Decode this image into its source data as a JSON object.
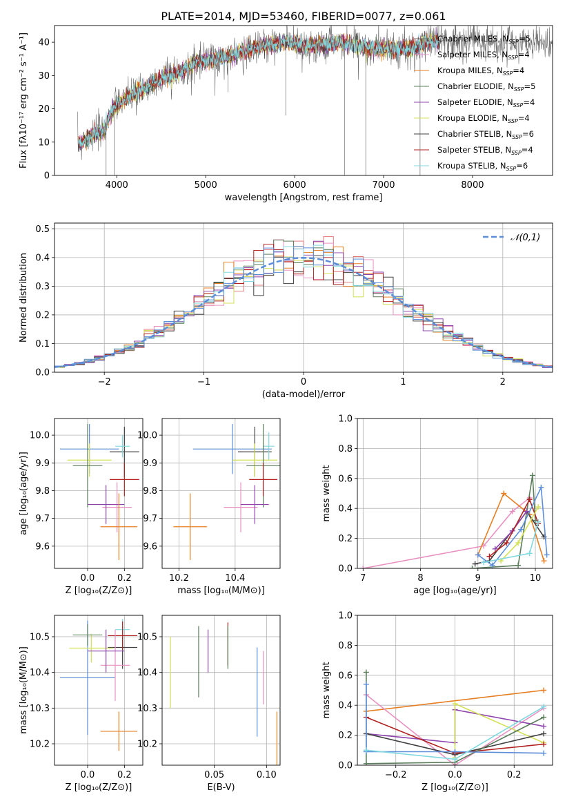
{
  "title": "PLATE=2014, MJD=53460, FIBERID=0077, z=0.061",
  "colors": [
    "#e07b7b",
    "#e891c1",
    "#e67e22",
    "#5a7d5a",
    "#8e44ad",
    "#d4e157",
    "#404040",
    "#b22222",
    "#80d8e0",
    "#5b8dd9"
  ],
  "chart_data": [
    {
      "type": "line",
      "name": "spectrum",
      "xlabel": "wavelength [Angstrom, rest frame]",
      "ylabel": "Flux [fλ10⁻¹⁷ erg cm⁻² s⁻¹ A⁻¹]",
      "xlim": [
        3300,
        8900
      ],
      "ylim": [
        0,
        45
      ],
      "xticks": [
        "4000",
        "5000",
        "6000",
        "7000",
        "8000"
      ],
      "yticks": [
        "0",
        "10",
        "20",
        "30",
        "40"
      ],
      "legend_position": "right",
      "series": [
        {
          "name": "Chabrier MILES, N_SSP=5",
          "label_main": "Chabrier MILES, N",
          "label_sub": "SSP",
          "label_tail": "=5",
          "color": "#6b6b6b"
        },
        {
          "name": "Salpeter MILES, N_SSP=4",
          "label_main": "Salpeter MILES, N",
          "label_sub": "SSP",
          "label_tail": "=4",
          "color": "#e891c1"
        },
        {
          "name": "Kroupa MILES, N_SSP=4",
          "label_main": "Kroupa MILES, N",
          "label_sub": "SSP",
          "label_tail": "=4",
          "color": "#e67e22"
        },
        {
          "name": "Chabrier ELODIE, N_SSP=5",
          "label_main": "Chabrier ELODIE, N",
          "label_sub": "SSP",
          "label_tail": "=5",
          "color": "#5a7d5a"
        },
        {
          "name": "Salpeter ELODIE, N_SSP=4",
          "label_main": "Salpeter ELODIE, N",
          "label_sub": "SSP",
          "label_tail": "=4",
          "color": "#8e44ad"
        },
        {
          "name": "Kroupa ELODIE, N_SSP=4",
          "label_main": "Kroupa ELODIE, N",
          "label_sub": "SSP",
          "label_tail": "=4",
          "color": "#d4e157"
        },
        {
          "name": "Chabrier STELIB, N_SSP=6",
          "label_main": "Chabrier STELIB, N",
          "label_sub": "SSP",
          "label_tail": "=6",
          "color": "#404040"
        },
        {
          "name": "Salpeter STELIB, N_SSP=4",
          "label_main": "Salpeter STELIB, N",
          "label_sub": "SSP",
          "label_tail": "=4",
          "color": "#b22222"
        },
        {
          "name": "Kroupa STELIB, N_SSP=6",
          "label_main": "Kroupa STELIB, N",
          "label_sub": "SSP",
          "label_tail": "=6",
          "color": "#80d8e0"
        }
      ],
      "continuum": [
        [
          3560,
          9
        ],
        [
          3700,
          12
        ],
        [
          3850,
          13
        ],
        [
          3950,
          20
        ],
        [
          4100,
          23
        ],
        [
          4300,
          26
        ],
        [
          4500,
          29
        ],
        [
          4700,
          31
        ],
        [
          4900,
          34
        ],
        [
          5100,
          35
        ],
        [
          5300,
          36
        ],
        [
          5500,
          38
        ],
        [
          5700,
          39
        ],
        [
          5900,
          40
        ],
        [
          6100,
          39
        ],
        [
          6300,
          39
        ],
        [
          6500,
          40
        ],
        [
          6700,
          39
        ],
        [
          6900,
          38
        ],
        [
          7100,
          38
        ],
        [
          7300,
          38
        ],
        [
          7500,
          40
        ],
        [
          7700,
          41
        ],
        [
          7900,
          40
        ],
        [
          8100,
          40
        ],
        [
          8300,
          40
        ],
        [
          8500,
          39
        ],
        [
          8700,
          40
        ],
        [
          8900,
          40
        ]
      ]
    },
    {
      "type": "step",
      "name": "residuals",
      "xlabel": "(data-model)/error",
      "ylabel": "Normed distribution",
      "xlim": [
        -2.5,
        2.5
      ],
      "ylim": [
        0,
        0.52
      ],
      "xticks": [
        "−2",
        "−1",
        "0",
        "1",
        "2"
      ],
      "yticks": [
        "0.0",
        "0.1",
        "0.2",
        "0.3",
        "0.4",
        "0.5"
      ],
      "legend": "𝒩(0,1)",
      "legend_position": "upper right",
      "reference_curve": "gaussian mean 0 sigma 1"
    },
    {
      "type": "errorbar",
      "name": "age-vs-Z",
      "xlabel": "Z [log₁₀(Z/Z⊙)]",
      "ylabel": "age  [log₁₀(age/yr)]",
      "xlim": [
        -0.18,
        0.3
      ],
      "ylim": [
        9.52,
        10.06
      ],
      "xticks": [
        "0.0",
        "0.2"
      ],
      "yticks": [
        "9.6",
        "9.7",
        "9.8",
        "9.9",
        "10.0"
      ],
      "points": [
        {
          "x": 0.01,
          "y": 9.95,
          "xerr": 0.16,
          "yerr": 0.09,
          "color": "#5b8dd9"
        },
        {
          "x": 0.2,
          "y": 9.94,
          "xerr": 0.08,
          "yerr": 0.09,
          "color": "#404040"
        },
        {
          "x": 0.19,
          "y": 9.96,
          "xerr": 0.04,
          "yerr": 0.04,
          "color": "#80d8e0"
        },
        {
          "x": 0.01,
          "y": 9.91,
          "xerr": 0.12,
          "yerr": 0.06,
          "color": "#d4e157"
        },
        {
          "x": 0.0,
          "y": 9.89,
          "xerr": 0.08,
          "yerr": 0.15,
          "color": "#5a7d5a"
        },
        {
          "x": 0.2,
          "y": 9.84,
          "xerr": 0.08,
          "yerr": 0.06,
          "color": "#b22222"
        },
        {
          "x": 0.16,
          "y": 9.74,
          "xerr": 0.08,
          "yerr": 0.09,
          "color": "#e891c1"
        },
        {
          "x": 0.1,
          "y": 9.75,
          "xerr": 0.1,
          "yerr": 0.07,
          "color": "#8e44ad"
        },
        {
          "x": 0.17,
          "y": 9.67,
          "xerr": 0.1,
          "yerr": 0.12,
          "color": "#e67e22"
        }
      ]
    },
    {
      "type": "errorbar",
      "name": "age-vs-mass",
      "xlabel": "mass [log₁₀(M/M⊙)]",
      "ylabel": "",
      "xlim": [
        10.14,
        10.56
      ],
      "ylim": [
        9.52,
        10.06
      ],
      "xticks": [
        "10.2",
        "10.4"
      ],
      "yticks": [
        "9.6",
        "9.7",
        "9.8",
        "9.9",
        "10.0"
      ],
      "points": [
        {
          "x": 10.39,
          "y": 9.95,
          "xerr": 0.14,
          "yerr": 0.09,
          "color": "#5b8dd9"
        },
        {
          "x": 10.47,
          "y": 9.94,
          "xerr": 0.06,
          "yerr": 0.09,
          "color": "#404040"
        },
        {
          "x": 10.52,
          "y": 9.96,
          "xerr": 0.02,
          "yerr": 0.05,
          "color": "#80d8e0"
        },
        {
          "x": 10.47,
          "y": 9.91,
          "xerr": 0.08,
          "yerr": 0.06,
          "color": "#d4e157"
        },
        {
          "x": 10.5,
          "y": 9.89,
          "xerr": 0.06,
          "yerr": 0.15,
          "color": "#5a7d5a"
        },
        {
          "x": 10.5,
          "y": 9.84,
          "xerr": 0.05,
          "yerr": 0.06,
          "color": "#b22222"
        },
        {
          "x": 10.42,
          "y": 9.74,
          "xerr": 0.06,
          "yerr": 0.09,
          "color": "#e891c1"
        },
        {
          "x": 10.47,
          "y": 9.75,
          "xerr": 0.05,
          "yerr": 0.07,
          "color": "#8e44ad"
        },
        {
          "x": 10.24,
          "y": 9.67,
          "xerr": 0.06,
          "yerr": 0.12,
          "color": "#e67e22"
        }
      ]
    },
    {
      "type": "line",
      "name": "weight-vs-age",
      "xlabel": "age  [log₁₀(age/yr)]",
      "ylabel": "mass weight",
      "xlim": [
        6.9,
        10.3
      ],
      "ylim": [
        0,
        1
      ],
      "xticks": [
        "7",
        "8",
        "9",
        "10"
      ],
      "yticks": [
        "0.0",
        "0.2",
        "0.4",
        "0.6",
        "0.8",
        "1.0"
      ],
      "series": [
        {
          "color": "#e891c1",
          "x": [
            7.0,
            9.1,
            9.6,
            9.9
          ],
          "y": [
            0.0,
            0.15,
            0.38,
            0.47
          ]
        },
        {
          "color": "#e67e22",
          "x": [
            9.0,
            9.45,
            9.9,
            10.15
          ],
          "y": [
            0.09,
            0.5,
            0.36,
            0.05
          ]
        },
        {
          "color": "#5a7d5a",
          "x": [
            8.9,
            9.7,
            9.95,
            10.0
          ],
          "y": [
            0.0,
            0.02,
            0.62,
            0.32
          ]
        },
        {
          "color": "#404040",
          "x": [
            8.95,
            9.2,
            9.85,
            10.15
          ],
          "y": [
            0.03,
            0.05,
            0.38,
            0.21
          ]
        },
        {
          "color": "#8e44ad",
          "x": [
            9.3,
            9.6,
            9.85
          ],
          "y": [
            0.13,
            0.25,
            0.38
          ]
        },
        {
          "color": "#b22222",
          "x": [
            9.2,
            9.5,
            9.9,
            10.05
          ],
          "y": [
            0.08,
            0.17,
            0.46,
            0.3
          ]
        },
        {
          "color": "#5b8dd9",
          "x": [
            9.0,
            9.25,
            9.75,
            10.1,
            10.2
          ],
          "y": [
            0.09,
            0.02,
            0.26,
            0.54,
            0.09
          ]
        },
        {
          "color": "#d4e157",
          "x": [
            9.4,
            9.7,
            10.05
          ],
          "y": [
            0.05,
            0.17,
            0.41
          ]
        },
        {
          "color": "#80d8e0",
          "x": [
            9.1,
            9.9,
            10.05
          ],
          "y": [
            0.04,
            0.1,
            0.31
          ]
        }
      ]
    },
    {
      "type": "errorbar",
      "name": "mass-vs-Z",
      "xlabel": "Z [log₁₀(Z/Z⊙)]",
      "ylabel": "mass [log₁₀(M/M⊙)]",
      "xlim": [
        -0.18,
        0.3
      ],
      "ylim": [
        10.14,
        10.56
      ],
      "xticks": [
        "0.0",
        "0.2"
      ],
      "yticks": [
        "10.2",
        "10.3",
        "10.4",
        "10.5"
      ],
      "points": [
        {
          "x": 0.0,
          "y": 10.385,
          "xerr": 0.15,
          "yerr": 0.16,
          "color": "#5b8dd9"
        },
        {
          "x": 0.19,
          "y": 10.47,
          "xerr": 0.08,
          "yerr": 0.06,
          "color": "#404040"
        },
        {
          "x": 0.19,
          "y": 10.52,
          "xerr": 0.04,
          "yerr": 0.03,
          "color": "#80d8e0"
        },
        {
          "x": 0.02,
          "y": 10.468,
          "xerr": 0.12,
          "yerr": 0.04,
          "color": "#d4e157"
        },
        {
          "x": 0.0,
          "y": 10.505,
          "xerr": 0.08,
          "yerr": 0.03,
          "color": "#5a7d5a"
        },
        {
          "x": 0.19,
          "y": 10.503,
          "xerr": 0.08,
          "yerr": 0.04,
          "color": "#b22222"
        },
        {
          "x": 0.15,
          "y": 10.42,
          "xerr": 0.08,
          "yerr": 0.1,
          "color": "#e891c1"
        },
        {
          "x": 0.1,
          "y": 10.46,
          "xerr": 0.1,
          "yerr": 0.06,
          "color": "#8e44ad"
        },
        {
          "x": 0.17,
          "y": 10.235,
          "xerr": 0.1,
          "yerr": 0.055,
          "color": "#e67e22"
        }
      ]
    },
    {
      "type": "errorbar",
      "name": "mass-vs-EBV",
      "xlabel": "E(B-V)",
      "ylabel": "",
      "xlim": [
        0.0,
        0.113
      ],
      "ylim": [
        10.14,
        10.56
      ],
      "xticks": [
        "0.05",
        "0.10"
      ],
      "yticks": [
        "10.2",
        "10.3",
        "10.4",
        "10.5"
      ],
      "points": [
        {
          "x": 0.008,
          "y": 10.4,
          "xerr": 0.0,
          "yerr": 0.1,
          "color": "#d4e157"
        },
        {
          "x": 0.035,
          "y": 10.43,
          "xerr": 0.0,
          "yerr": 0.1,
          "color": "#5a7d5a"
        },
        {
          "x": 0.044,
          "y": 10.46,
          "xerr": 0.0,
          "yerr": 0.06,
          "color": "#8e44ad"
        },
        {
          "x": 0.063,
          "y": 10.48,
          "xerr": 0.0,
          "yerr": 0.06,
          "color": "#b22222"
        },
        {
          "x": 0.063,
          "y": 10.47,
          "xerr": 0.0,
          "yerr": 0.06,
          "color": "#5a7d5a"
        },
        {
          "x": 0.091,
          "y": 10.345,
          "xerr": 0.0,
          "yerr": 0.125,
          "color": "#5b8dd9"
        },
        {
          "x": 0.097,
          "y": 10.385,
          "xerr": 0.0,
          "yerr": 0.075,
          "color": "#e891c1"
        },
        {
          "x": 0.11,
          "y": 10.18,
          "xerr": 0.0,
          "yerr": 0.11,
          "color": "#e67e22"
        }
      ]
    },
    {
      "type": "line",
      "name": "weight-vs-Z",
      "xlabel": "Z [log₁₀(Z/Z⊙)]",
      "ylabel": "mass weight",
      "xlim": [
        -0.33,
        0.33
      ],
      "ylim": [
        0,
        1
      ],
      "xticks": [
        "−0.2",
        "0.0",
        "0.2"
      ],
      "yticks": [
        "0.0",
        "0.2",
        "0.4",
        "0.6",
        "0.8",
        "1.0"
      ],
      "series": [
        {
          "color": "#e67e22",
          "x": [
            -0.3,
            0.3
          ],
          "y": [
            0.36,
            0.5
          ]
        },
        {
          "color": "#e891c1",
          "x": [
            -0.3,
            0.0,
            0.3
          ],
          "y": [
            0.47,
            0.0,
            0.38
          ]
        },
        {
          "color": "#8e44ad",
          "x": [
            -0.3,
            0.0,
            0.0,
            0.3
          ],
          "y": [
            0.21,
            0.15,
            0.37,
            0.26
          ]
        },
        {
          "color": "#d4e157",
          "x": [
            0.0,
            0.0,
            0.3
          ],
          "y": [
            0.05,
            0.41,
            0.15
          ]
        },
        {
          "color": "#404040",
          "x": [
            -0.3,
            0.0,
            0.3
          ],
          "y": [
            0.21,
            0.07,
            0.21
          ]
        },
        {
          "color": "#b22222",
          "x": [
            -0.3,
            0.0,
            0.3
          ],
          "y": [
            0.32,
            0.08,
            0.14
          ]
        },
        {
          "color": "#5a7d5a",
          "x": [
            -0.3,
            -0.3,
            0.0,
            0.3
          ],
          "y": [
            0.62,
            0.01,
            0.02,
            0.32
          ]
        },
        {
          "color": "#5b8dd9",
          "x": [
            -0.3,
            -0.3,
            0.0,
            0.3
          ],
          "y": [
            0.54,
            0.09,
            0.09,
            0.08
          ]
        },
        {
          "color": "#80d8e0",
          "x": [
            -0.3,
            0.0,
            0.3
          ],
          "y": [
            0.1,
            0.04,
            0.39
          ]
        }
      ]
    }
  ]
}
